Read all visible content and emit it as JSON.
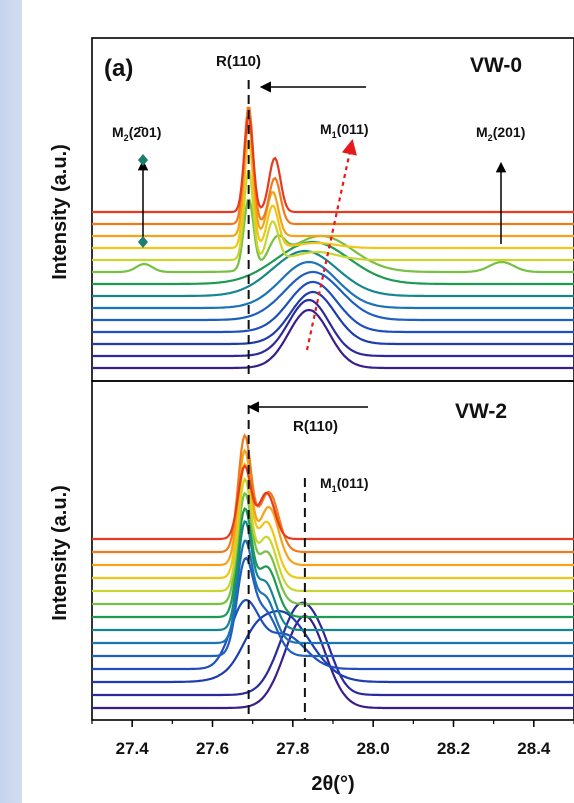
{
  "chart_data": [
    {
      "type": "line",
      "panel_label": "(a)",
      "sample": "VW-0",
      "ylabel": "Intensity (a.u.)",
      "xlabel": "2θ(°)",
      "xlim": [
        27.3,
        28.5
      ],
      "xticks": [
        "27.4",
        "27.6",
        "27.8",
        "28.0",
        "28.2",
        "28.4"
      ],
      "annotations": {
        "r110": "R(110)",
        "m1_prefix": "M",
        "m1_sub": "1",
        "m1_suffix": "(011)",
        "m2a_prefix": "M",
        "m2a_sub": "2",
        "m2a_suffix": "(201)",
        "m2a_bar": "2̄01",
        "m2b_prefix": "M",
        "m2b_sub": "2",
        "m2b_suffix": "(201)"
      },
      "dashed_line_x": 27.69,
      "series": [
        {
          "color": "#3a1f8a",
          "offset": 0,
          "peaks": [
            [
              27.84,
              58,
              0.05
            ]
          ]
        },
        {
          "color": "#2b2a9c",
          "offset": 12,
          "peaks": [
            [
              27.84,
              56,
              0.05
            ]
          ]
        },
        {
          "color": "#1f3cad",
          "offset": 24,
          "peaks": [
            [
              27.85,
              52,
              0.055
            ]
          ]
        },
        {
          "color": "#1e4fbd",
          "offset": 36,
          "peaks": [
            [
              27.85,
              50,
              0.06
            ]
          ]
        },
        {
          "color": "#1e5fbf",
          "offset": 48,
          "peaks": [
            [
              27.85,
              48,
              0.07
            ]
          ]
        },
        {
          "color": "#1d74b4",
          "offset": 60,
          "peaks": [
            [
              27.84,
              46,
              0.07
            ]
          ]
        },
        {
          "color": "#16868f",
          "offset": 72,
          "peaks": [
            [
              27.83,
              45,
              0.08
            ]
          ]
        },
        {
          "color": "#1f9a55",
          "offset": 84,
          "peaks": [
            [
              27.85,
              42,
              0.09
            ]
          ]
        },
        {
          "color": "#76c043",
          "offset": 96,
          "peaks": [
            [
              27.69,
              70,
              0.012
            ],
            [
              27.76,
              22,
              0.02
            ],
            [
              27.87,
              36,
              0.08
            ],
            [
              27.43,
              8,
              0.02
            ],
            [
              28.32,
              10,
              0.03
            ]
          ]
        },
        {
          "color": "#c9d630",
          "offset": 108,
          "peaks": [
            [
              27.69,
              90,
              0.011
            ],
            [
              27.75,
              38,
              0.014
            ],
            [
              27.86,
              8,
              0.05
            ]
          ]
        },
        {
          "color": "#f2c617",
          "offset": 120,
          "peaks": [
            [
              27.69,
              108,
              0.011
            ],
            [
              27.75,
              42,
              0.014
            ],
            [
              27.86,
              5,
              0.05
            ]
          ]
        },
        {
          "color": "#f5a31a",
          "offset": 132,
          "peaks": [
            [
              27.69,
              114,
              0.011
            ],
            [
              27.75,
              44,
              0.014
            ]
          ]
        },
        {
          "color": "#f07b1d",
          "offset": 144,
          "peaks": [
            [
              27.69,
              118,
              0.011
            ],
            [
              27.755,
              46,
              0.014
            ]
          ]
        },
        {
          "color": "#e83a1f",
          "offset": 156,
          "peaks": [
            [
              27.69,
              96,
              0.011
            ],
            [
              27.755,
              54,
              0.014
            ]
          ]
        }
      ]
    },
    {
      "type": "line",
      "sample": "VW-2",
      "ylabel": "Intensity (a.u.)",
      "xlabel": "2θ(°)",
      "xlim": [
        27.3,
        28.5
      ],
      "xticks": [
        "27.4",
        "27.6",
        "27.8",
        "28.0",
        "28.2",
        "28.4"
      ],
      "annotations": {
        "r110": "R(110)",
        "m1_prefix": "M",
        "m1_sub": "1",
        "m1_suffix": "(011)"
      },
      "dashed_lines_x": [
        27.69,
        27.83
      ],
      "series": [
        {
          "color": "#3a1f8a",
          "offset": 0,
          "peaks": [
            [
              27.83,
              92,
              0.05
            ]
          ]
        },
        {
          "color": "#2b2a9c",
          "offset": 13,
          "peaks": [
            [
              27.82,
              90,
              0.05
            ],
            [
              27.88,
              15,
              0.03
            ]
          ]
        },
        {
          "color": "#1f3cad",
          "offset": 26,
          "peaks": [
            [
              27.77,
              70,
              0.07
            ],
            [
              27.7,
              12,
              0.03
            ]
          ]
        },
        {
          "color": "#1e4fbd",
          "offset": 39,
          "peaks": [
            [
              27.68,
              64,
              0.035
            ],
            [
              27.78,
              34,
              0.05
            ]
          ]
        },
        {
          "color": "#1e5fbf",
          "offset": 52,
          "peaks": [
            [
              27.68,
              86,
              0.02
            ],
            [
              27.73,
              44,
              0.03
            ]
          ]
        },
        {
          "color": "#1d74b4",
          "offset": 65,
          "peaks": [
            [
              27.68,
              96,
              0.018
            ],
            [
              27.73,
              46,
              0.025
            ]
          ]
        },
        {
          "color": "#16868f",
          "offset": 78,
          "peaks": [
            [
              27.68,
              102,
              0.017
            ],
            [
              27.73,
              48,
              0.025
            ]
          ]
        },
        {
          "color": "#1f9a55",
          "offset": 91,
          "peaks": [
            [
              27.68,
              104,
              0.017
            ],
            [
              27.735,
              50,
              0.025
            ]
          ]
        },
        {
          "color": "#76c043",
          "offset": 104,
          "peaks": [
            [
              27.68,
              106,
              0.017
            ],
            [
              27.735,
              52,
              0.025
            ]
          ]
        },
        {
          "color": "#c9d630",
          "offset": 117,
          "peaks": [
            [
              27.68,
              108,
              0.016
            ],
            [
              27.735,
              54,
              0.024
            ]
          ]
        },
        {
          "color": "#f2c617",
          "offset": 130,
          "peaks": [
            [
              27.68,
              110,
              0.016
            ],
            [
              27.735,
              56,
              0.024
            ]
          ]
        },
        {
          "color": "#f5a31a",
          "offset": 143,
          "peaks": [
            [
              27.68,
              112,
              0.016
            ],
            [
              27.74,
              58,
              0.024
            ]
          ]
        },
        {
          "color": "#f07b1d",
          "offset": 156,
          "peaks": [
            [
              27.68,
              114,
              0.016
            ],
            [
              27.74,
              60,
              0.024
            ]
          ]
        },
        {
          "color": "#e83a1f",
          "offset": 169,
          "peaks": [
            [
              27.68,
              72,
              0.016
            ],
            [
              27.735,
              46,
              0.02
            ]
          ]
        }
      ]
    }
  ]
}
